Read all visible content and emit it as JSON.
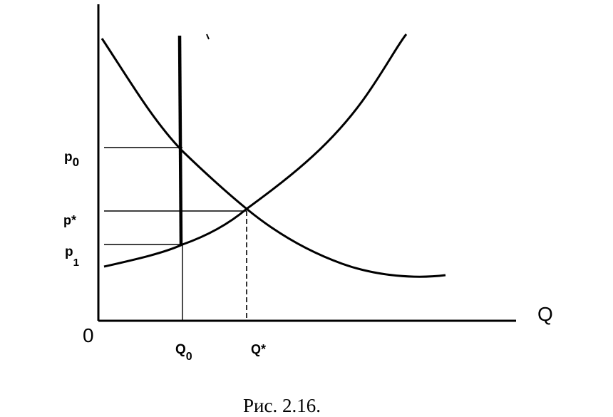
{
  "diagram": {
    "origin_label": "0",
    "x_axis_label": "Q",
    "price_labels": {
      "p0": {
        "main": "p",
        "sub": "0"
      },
      "pstar": {
        "main": "p*"
      },
      "p1": {
        "main": "p",
        "sub": "1"
      }
    },
    "quantity_labels": {
      "q0": {
        "main": "Q",
        "sub": "0"
      },
      "qstar": {
        "main": "Q*"
      }
    },
    "caption": "Рис.  2.16."
  }
}
